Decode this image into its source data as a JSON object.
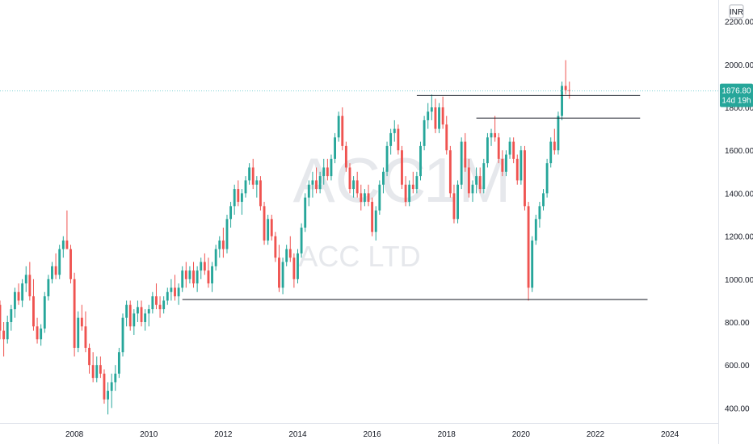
{
  "chart_data": {
    "type": "candlestick",
    "watermark": {
      "symbol": "ACC",
      "interval": "1M",
      "name": "ACC LTD"
    },
    "currency": "INR",
    "last_price": "1876.80",
    "countdown": "14d 19h",
    "colors": {
      "up": "#26a69a",
      "down": "#ef5350",
      "line": "#131722",
      "price_line": "#7fd3d6"
    },
    "grid": false,
    "y_ticks": [
      "2200.00",
      "2000.00",
      "1800.00",
      "1600.00",
      "1400.00",
      "1200.00",
      "1000.00",
      "800.00",
      "600.00",
      "400.00"
    ],
    "x_ticks": [
      "2008",
      "2010",
      "2012",
      "2014",
      "2016",
      "2018",
      "2020",
      "2022",
      "2024"
    ],
    "ylim": [
      330,
      2300
    ],
    "xlim": [
      2006.0,
      2025.3
    ],
    "horizontal_lines": [
      {
        "y": 1855,
        "x_from": 2017.2,
        "x_to": 2023.2
      },
      {
        "y": 1750,
        "x_from": 2018.8,
        "x_to": 2023.2
      },
      {
        "y": 905,
        "x_from": 2010.9,
        "x_to": 2023.4
      }
    ],
    "candles": [
      [
        2006.0,
        880,
        900,
        720,
        760
      ],
      [
        2006.1,
        760,
        800,
        640,
        720
      ],
      [
        2006.2,
        720,
        830,
        700,
        800
      ],
      [
        2006.3,
        800,
        880,
        760,
        860
      ],
      [
        2006.4,
        860,
        960,
        820,
        940
      ],
      [
        2006.5,
        940,
        980,
        880,
        900
      ],
      [
        2006.6,
        900,
        1000,
        870,
        980
      ],
      [
        2006.7,
        980,
        1060,
        940,
        1020
      ],
      [
        2006.8,
        1020,
        1080,
        900,
        920
      ],
      [
        2006.9,
        920,
        1000,
        760,
        780
      ],
      [
        2007.0,
        780,
        820,
        700,
        720
      ],
      [
        2007.1,
        720,
        790,
        690,
        770
      ],
      [
        2007.2,
        770,
        940,
        750,
        920
      ],
      [
        2007.3,
        920,
        1020,
        900,
        1000
      ],
      [
        2007.4,
        1000,
        1080,
        980,
        1060
      ],
      [
        2007.5,
        1060,
        1120,
        1000,
        1020
      ],
      [
        2007.6,
        1020,
        1160,
        1000,
        1140
      ],
      [
        2007.7,
        1140,
        1200,
        1100,
        1180
      ],
      [
        2007.8,
        1180,
        1320,
        1150,
        1140
      ],
      [
        2007.9,
        1140,
        1160,
        980,
        1000
      ],
      [
        2008.0,
        1000,
        1030,
        640,
        680
      ],
      [
        2008.1,
        680,
        850,
        660,
        820
      ],
      [
        2008.2,
        820,
        880,
        760,
        780
      ],
      [
        2008.3,
        780,
        850,
        660,
        680
      ],
      [
        2008.4,
        680,
        700,
        560,
        600
      ],
      [
        2008.5,
        600,
        660,
        520,
        540
      ],
      [
        2008.6,
        540,
        640,
        520,
        600
      ],
      [
        2008.7,
        600,
        640,
        540,
        560
      ],
      [
        2008.8,
        560,
        580,
        420,
        440
      ],
      [
        2008.9,
        440,
        520,
        370,
        480
      ],
      [
        2009.0,
        480,
        560,
        400,
        520
      ],
      [
        2009.1,
        520,
        600,
        480,
        560
      ],
      [
        2009.2,
        560,
        680,
        540,
        660
      ],
      [
        2009.3,
        660,
        840,
        640,
        820
      ],
      [
        2009.4,
        820,
        900,
        780,
        880
      ],
      [
        2009.5,
        880,
        900,
        760,
        780
      ],
      [
        2009.6,
        780,
        860,
        740,
        840
      ],
      [
        2009.7,
        840,
        900,
        800,
        870
      ],
      [
        2009.8,
        870,
        900,
        780,
        800
      ],
      [
        2009.9,
        800,
        860,
        760,
        840
      ],
      [
        2010.0,
        840,
        880,
        780,
        860
      ],
      [
        2010.1,
        860,
        940,
        840,
        920
      ],
      [
        2010.2,
        920,
        980,
        860,
        880
      ],
      [
        2010.3,
        880,
        920,
        820,
        860
      ],
      [
        2010.4,
        860,
        920,
        840,
        900
      ],
      [
        2010.5,
        900,
        960,
        880,
        940
      ],
      [
        2010.6,
        940,
        1000,
        900,
        960
      ],
      [
        2010.7,
        960,
        1020,
        900,
        920
      ],
      [
        2010.8,
        920,
        980,
        880,
        960
      ],
      [
        2010.9,
        960,
        1060,
        940,
        1040
      ],
      [
        2011.0,
        1040,
        1080,
        960,
        1000
      ],
      [
        2011.1,
        1000,
        1060,
        980,
        1040
      ],
      [
        2011.2,
        1040,
        1080,
        960,
        980
      ],
      [
        2011.3,
        980,
        1060,
        940,
        1040
      ],
      [
        2011.4,
        1040,
        1100,
        1000,
        1080
      ],
      [
        2011.5,
        1080,
        1120,
        1020,
        1040
      ],
      [
        2011.6,
        1040,
        1100,
        960,
        980
      ],
      [
        2011.7,
        980,
        1080,
        940,
        1060
      ],
      [
        2011.8,
        1060,
        1160,
        1040,
        1140
      ],
      [
        2011.9,
        1140,
        1200,
        1100,
        1180
      ],
      [
        2012.0,
        1180,
        1240,
        1100,
        1140
      ],
      [
        2012.1,
        1140,
        1300,
        1120,
        1280
      ],
      [
        2012.2,
        1280,
        1360,
        1240,
        1340
      ],
      [
        2012.3,
        1340,
        1440,
        1300,
        1420
      ],
      [
        2012.4,
        1420,
        1460,
        1340,
        1360
      ],
      [
        2012.5,
        1360,
        1420,
        1300,
        1400
      ],
      [
        2012.6,
        1400,
        1480,
        1380,
        1460
      ],
      [
        2012.7,
        1460,
        1540,
        1440,
        1520
      ],
      [
        2012.8,
        1520,
        1560,
        1420,
        1440
      ],
      [
        2012.9,
        1440,
        1480,
        1380,
        1460
      ],
      [
        2013.0,
        1460,
        1480,
        1320,
        1340
      ],
      [
        2013.1,
        1340,
        1360,
        1160,
        1180
      ],
      [
        2013.2,
        1180,
        1300,
        1160,
        1280
      ],
      [
        2013.3,
        1280,
        1300,
        1180,
        1200
      ],
      [
        2013.4,
        1200,
        1220,
        1080,
        1100
      ],
      [
        2013.5,
        1100,
        1160,
        940,
        960
      ],
      [
        2013.6,
        960,
        1100,
        930,
        1080
      ],
      [
        2013.7,
        1080,
        1160,
        1060,
        1140
      ],
      [
        2013.8,
        1140,
        1200,
        1080,
        1100
      ],
      [
        2013.9,
        1100,
        1120,
        960,
        1000
      ],
      [
        2014.0,
        1000,
        1140,
        980,
        1120
      ],
      [
        2014.1,
        1120,
        1260,
        1100,
        1240
      ],
      [
        2014.2,
        1240,
        1400,
        1220,
        1380
      ],
      [
        2014.3,
        1380,
        1460,
        1340,
        1440
      ],
      [
        2014.4,
        1440,
        1500,
        1380,
        1460
      ],
      [
        2014.5,
        1460,
        1520,
        1400,
        1420
      ],
      [
        2014.6,
        1420,
        1500,
        1400,
        1480
      ],
      [
        2014.7,
        1480,
        1560,
        1440,
        1520
      ],
      [
        2014.8,
        1520,
        1560,
        1460,
        1480
      ],
      [
        2014.9,
        1480,
        1580,
        1460,
        1560
      ],
      [
        2015.0,
        1560,
        1680,
        1540,
        1660
      ],
      [
        2015.1,
        1660,
        1780,
        1640,
        1760
      ],
      [
        2015.2,
        1760,
        1800,
        1600,
        1620
      ],
      [
        2015.3,
        1620,
        1640,
        1500,
        1520
      ],
      [
        2015.4,
        1520,
        1540,
        1400,
        1420
      ],
      [
        2015.5,
        1420,
        1480,
        1380,
        1460
      ],
      [
        2015.6,
        1460,
        1500,
        1380,
        1400
      ],
      [
        2015.7,
        1400,
        1440,
        1320,
        1360
      ],
      [
        2015.8,
        1360,
        1420,
        1340,
        1400
      ],
      [
        2015.9,
        1400,
        1440,
        1340,
        1360
      ],
      [
        2016.0,
        1360,
        1380,
        1200,
        1220
      ],
      [
        2016.1,
        1220,
        1340,
        1180,
        1320
      ],
      [
        2016.2,
        1320,
        1460,
        1300,
        1440
      ],
      [
        2016.3,
        1440,
        1520,
        1400,
        1500
      ],
      [
        2016.4,
        1500,
        1640,
        1480,
        1620
      ],
      [
        2016.5,
        1620,
        1700,
        1580,
        1680
      ],
      [
        2016.6,
        1680,
        1740,
        1640,
        1700
      ],
      [
        2016.7,
        1700,
        1720,
        1580,
        1600
      ],
      [
        2016.8,
        1600,
        1620,
        1420,
        1440
      ],
      [
        2016.9,
        1440,
        1480,
        1340,
        1360
      ],
      [
        2017.0,
        1360,
        1460,
        1340,
        1440
      ],
      [
        2017.1,
        1440,
        1500,
        1400,
        1420
      ],
      [
        2017.2,
        1420,
        1500,
        1400,
        1480
      ],
      [
        2017.3,
        1480,
        1640,
        1460,
        1620
      ],
      [
        2017.4,
        1620,
        1760,
        1600,
        1740
      ],
      [
        2017.5,
        1740,
        1820,
        1700,
        1780
      ],
      [
        2017.6,
        1780,
        1860,
        1740,
        1800
      ],
      [
        2017.7,
        1800,
        1840,
        1680,
        1700
      ],
      [
        2017.8,
        1700,
        1820,
        1680,
        1800
      ],
      [
        2017.9,
        1800,
        1850,
        1700,
        1720
      ],
      [
        2018.0,
        1720,
        1760,
        1580,
        1600
      ],
      [
        2018.1,
        1600,
        1620,
        1380,
        1400
      ],
      [
        2018.2,
        1400,
        1440,
        1260,
        1280
      ],
      [
        2018.3,
        1280,
        1460,
        1260,
        1440
      ],
      [
        2018.4,
        1440,
        1660,
        1420,
        1640
      ],
      [
        2018.5,
        1640,
        1680,
        1500,
        1520
      ],
      [
        2018.6,
        1520,
        1560,
        1380,
        1400
      ],
      [
        2018.7,
        1400,
        1460,
        1360,
        1440
      ],
      [
        2018.8,
        1440,
        1520,
        1400,
        1480
      ],
      [
        2018.9,
        1480,
        1520,
        1400,
        1420
      ],
      [
        2019.0,
        1420,
        1560,
        1400,
        1540
      ],
      [
        2019.1,
        1540,
        1680,
        1520,
        1660
      ],
      [
        2019.2,
        1660,
        1700,
        1620,
        1680
      ],
      [
        2019.3,
        1680,
        1760,
        1640,
        1660
      ],
      [
        2019.4,
        1660,
        1680,
        1540,
        1560
      ],
      [
        2019.5,
        1560,
        1600,
        1480,
        1500
      ],
      [
        2019.6,
        1500,
        1600,
        1480,
        1580
      ],
      [
        2019.7,
        1580,
        1660,
        1560,
        1640
      ],
      [
        2019.8,
        1640,
        1660,
        1540,
        1560
      ],
      [
        2019.9,
        1560,
        1580,
        1440,
        1460
      ],
      [
        2020.0,
        1460,
        1620,
        1440,
        1600
      ],
      [
        2020.1,
        1600,
        1620,
        1320,
        1340
      ],
      [
        2020.2,
        1340,
        1360,
        900,
        960
      ],
      [
        2020.3,
        960,
        1200,
        940,
        1180
      ],
      [
        2020.4,
        1180,
        1300,
        1160,
        1280
      ],
      [
        2020.5,
        1280,
        1360,
        1240,
        1340
      ],
      [
        2020.6,
        1340,
        1420,
        1320,
        1400
      ],
      [
        2020.7,
        1400,
        1560,
        1380,
        1540
      ],
      [
        2020.8,
        1540,
        1660,
        1520,
        1640
      ],
      [
        2020.9,
        1640,
        1700,
        1580,
        1600
      ],
      [
        2021.0,
        1600,
        1780,
        1580,
        1760
      ],
      [
        2021.1,
        1760,
        1920,
        1740,
        1900
      ],
      [
        2021.2,
        1900,
        2020,
        1860,
        1880
      ],
      [
        2021.3,
        1880,
        1920,
        1840,
        1876.8
      ]
    ]
  }
}
